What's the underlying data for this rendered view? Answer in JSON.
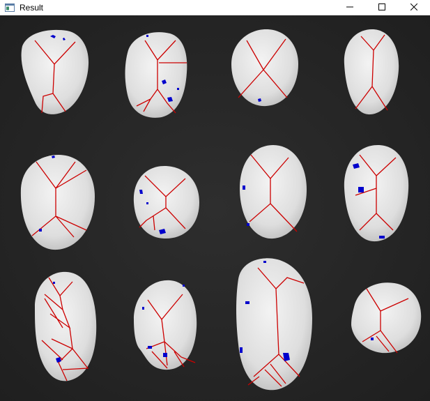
{
  "window": {
    "title": "Result",
    "icons": {
      "app": "app-window-icon",
      "minimize": "minimize-icon",
      "maximize": "maximize-icon",
      "close": "close-icon"
    }
  },
  "image": {
    "description_icon": "potato-segmentation-image",
    "colors": {
      "background": "#262626",
      "potato": "#e4e4e4",
      "ridge_line": "#cc0000",
      "blob": "#0000cc"
    }
  }
}
